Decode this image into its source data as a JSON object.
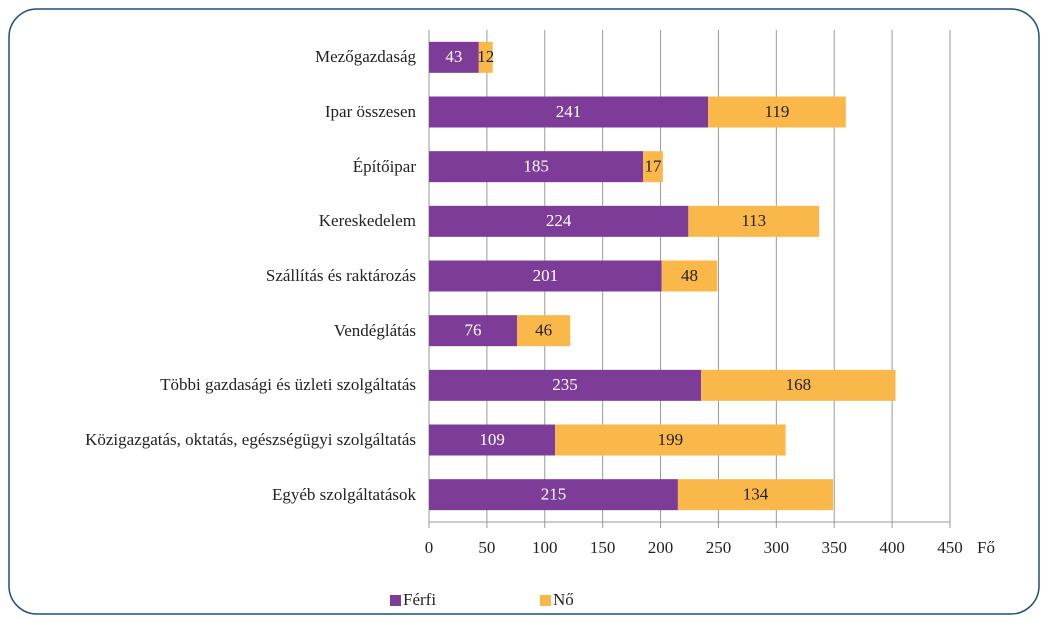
{
  "chart_data": {
    "type": "stacked_bar_horizontal",
    "categories": [
      "Mezőgazdaság",
      "Ipar összesen",
      "Építőipar",
      "Kereskedelem",
      "Szállítás és raktározás",
      "Vendéglátás",
      "Többi gazdasági és üzleti szolgáltatás",
      "Közigazgatás, oktatás, egészségügyi szolgáltatás",
      "Egyéb szolgáltatások"
    ],
    "series": [
      {
        "name": "Férfi",
        "color": "#7d3c98",
        "values": [
          43,
          241,
          185,
          224,
          201,
          76,
          235,
          109,
          215
        ]
      },
      {
        "name": "Nő",
        "color": "#fbb84a",
        "values": [
          12,
          119,
          17,
          113,
          48,
          46,
          168,
          199,
          134
        ]
      }
    ],
    "xlim": [
      0,
      450
    ],
    "xticks": [
      0,
      50,
      100,
      150,
      200,
      250,
      300,
      350,
      400,
      450
    ],
    "x_label": "Fő",
    "grid": true,
    "legend": "bottom"
  }
}
